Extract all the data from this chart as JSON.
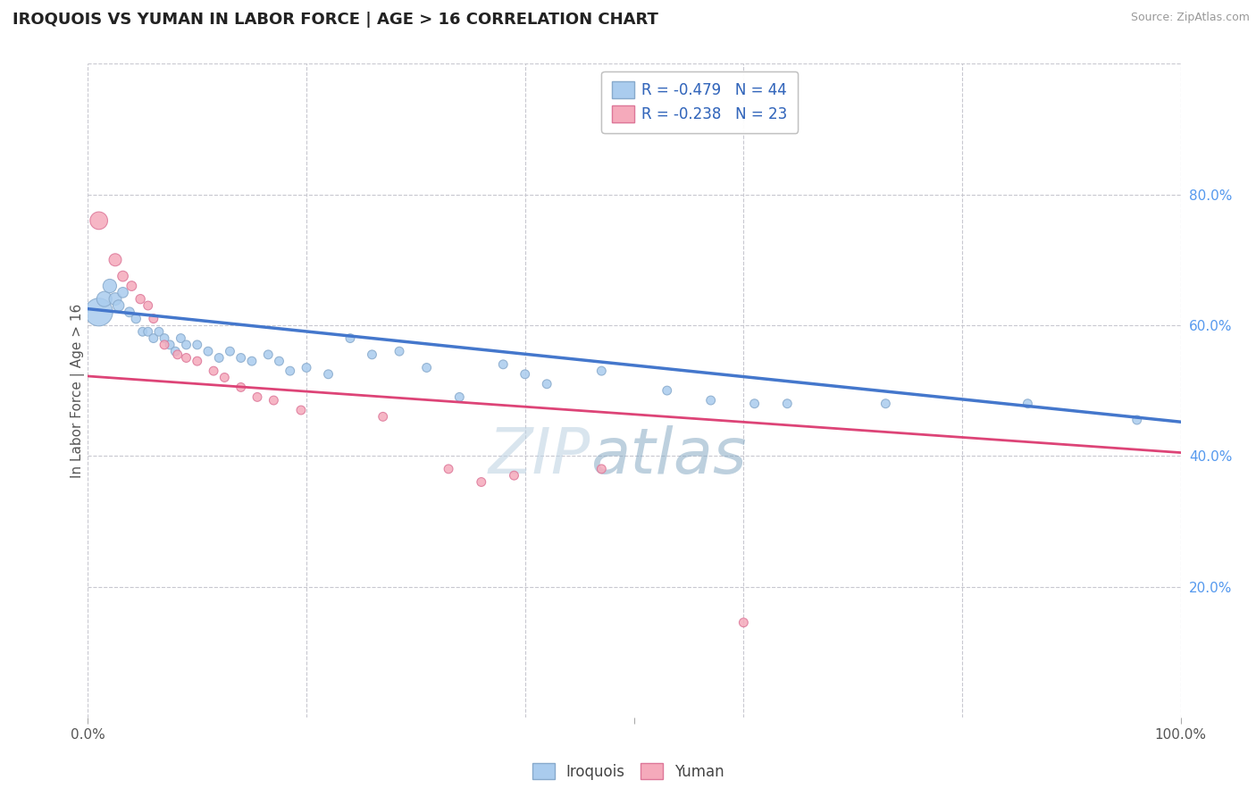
{
  "title": "IROQUOIS VS YUMAN IN LABOR FORCE | AGE > 16 CORRELATION CHART",
  "source_text": "Source: ZipAtlas.com",
  "ylabel": "In Labor Force | Age > 16",
  "xlim": [
    0.0,
    1.0
  ],
  "ylim": [
    0.0,
    1.0
  ],
  "background_color": "#ffffff",
  "grid_color": "#c8c8d0",
  "iroquois_color": "#aaccee",
  "iroquois_edge_color": "#88aacc",
  "yuman_color": "#f5aabb",
  "yuman_edge_color": "#dd7799",
  "iroquois_R": -0.479,
  "iroquois_N": 44,
  "yuman_R": -0.238,
  "yuman_N": 23,
  "iroquois_line_color": "#4477cc",
  "yuman_line_color": "#dd4477",
  "watermark_zip_color": "#c0d4e4",
  "watermark_atlas_color": "#88aac4",
  "tick_label_color": "#5599ee",
  "axis_label_color": "#555555",
  "legend_text_color": "#3366bb",
  "iroquois_line_y0": 0.625,
  "iroquois_line_y1": 0.452,
  "yuman_line_y0": 0.522,
  "yuman_line_y1": 0.405,
  "iroquois_points": [
    [
      0.01,
      0.62,
      500
    ],
    [
      0.015,
      0.64,
      150
    ],
    [
      0.02,
      0.66,
      120
    ],
    [
      0.025,
      0.64,
      100
    ],
    [
      0.028,
      0.63,
      80
    ],
    [
      0.032,
      0.65,
      70
    ],
    [
      0.038,
      0.62,
      60
    ],
    [
      0.044,
      0.61,
      55
    ],
    [
      0.05,
      0.59,
      50
    ],
    [
      0.055,
      0.59,
      50
    ],
    [
      0.06,
      0.58,
      50
    ],
    [
      0.065,
      0.59,
      50
    ],
    [
      0.07,
      0.58,
      50
    ],
    [
      0.075,
      0.57,
      50
    ],
    [
      0.08,
      0.56,
      50
    ],
    [
      0.085,
      0.58,
      50
    ],
    [
      0.09,
      0.57,
      50
    ],
    [
      0.1,
      0.57,
      50
    ],
    [
      0.11,
      0.56,
      50
    ],
    [
      0.12,
      0.55,
      50
    ],
    [
      0.13,
      0.56,
      50
    ],
    [
      0.14,
      0.55,
      50
    ],
    [
      0.15,
      0.545,
      50
    ],
    [
      0.165,
      0.555,
      50
    ],
    [
      0.175,
      0.545,
      50
    ],
    [
      0.185,
      0.53,
      50
    ],
    [
      0.2,
      0.535,
      50
    ],
    [
      0.22,
      0.525,
      50
    ],
    [
      0.24,
      0.58,
      50
    ],
    [
      0.26,
      0.555,
      50
    ],
    [
      0.285,
      0.56,
      50
    ],
    [
      0.31,
      0.535,
      50
    ],
    [
      0.34,
      0.49,
      50
    ],
    [
      0.38,
      0.54,
      50
    ],
    [
      0.4,
      0.525,
      50
    ],
    [
      0.42,
      0.51,
      50
    ],
    [
      0.47,
      0.53,
      50
    ],
    [
      0.53,
      0.5,
      50
    ],
    [
      0.57,
      0.485,
      50
    ],
    [
      0.61,
      0.48,
      50
    ],
    [
      0.64,
      0.48,
      50
    ],
    [
      0.73,
      0.48,
      50
    ],
    [
      0.86,
      0.48,
      50
    ],
    [
      0.96,
      0.455,
      50
    ]
  ],
  "yuman_points": [
    [
      0.01,
      0.76,
      200
    ],
    [
      0.025,
      0.7,
      100
    ],
    [
      0.032,
      0.675,
      70
    ],
    [
      0.04,
      0.66,
      60
    ],
    [
      0.048,
      0.64,
      55
    ],
    [
      0.055,
      0.63,
      50
    ],
    [
      0.06,
      0.61,
      50
    ],
    [
      0.07,
      0.57,
      50
    ],
    [
      0.082,
      0.555,
      50
    ],
    [
      0.09,
      0.55,
      50
    ],
    [
      0.1,
      0.545,
      50
    ],
    [
      0.115,
      0.53,
      50
    ],
    [
      0.125,
      0.52,
      50
    ],
    [
      0.14,
      0.505,
      50
    ],
    [
      0.155,
      0.49,
      50
    ],
    [
      0.17,
      0.485,
      50
    ],
    [
      0.195,
      0.47,
      50
    ],
    [
      0.27,
      0.46,
      50
    ],
    [
      0.33,
      0.38,
      50
    ],
    [
      0.36,
      0.36,
      50
    ],
    [
      0.39,
      0.37,
      50
    ],
    [
      0.47,
      0.38,
      50
    ],
    [
      0.6,
      0.145,
      50
    ]
  ]
}
